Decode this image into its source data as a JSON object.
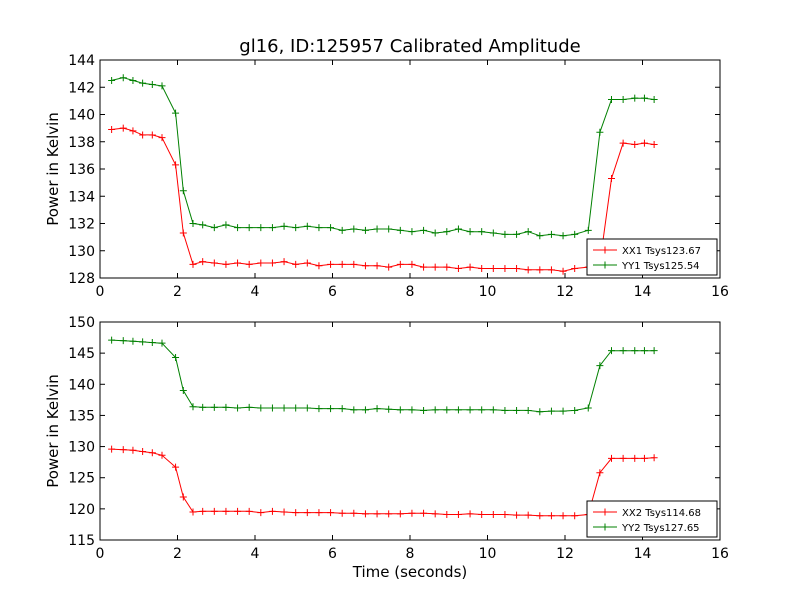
{
  "chart_data": [
    {
      "type": "line",
      "title": "gl16, ID:125957 Calibrated Amplitude",
      "xlabel": "",
      "ylabel": "Power in Kelvin",
      "xlim": [
        0,
        16
      ],
      "ylim": [
        128,
        144
      ],
      "xticks": [
        "0",
        "2",
        "4",
        "6",
        "8",
        "10",
        "12",
        "14",
        "16"
      ],
      "yticks": [
        "128",
        "130",
        "132",
        "134",
        "136",
        "138",
        "140",
        "142",
        "144"
      ],
      "grid": false,
      "legend_position": "lower-right",
      "x": [
        0.3,
        0.6,
        0.85,
        1.1,
        1.35,
        1.6,
        1.95,
        2.15,
        2.4,
        2.65,
        2.95,
        3.25,
        3.55,
        3.85,
        4.15,
        4.45,
        4.75,
        5.05,
        5.35,
        5.65,
        5.95,
        6.25,
        6.55,
        6.85,
        7.15,
        7.45,
        7.75,
        8.05,
        8.35,
        8.65,
        8.95,
        9.25,
        9.55,
        9.85,
        10.15,
        10.45,
        10.75,
        11.05,
        11.35,
        11.65,
        11.95,
        12.25,
        12.6,
        12.9,
        13.2,
        13.5,
        13.8,
        14.05,
        14.3
      ],
      "series": [
        {
          "name": "XX1 Tsys123.67",
          "color": "#ff0000",
          "values": [
            138.9,
            139.0,
            138.8,
            138.5,
            138.5,
            138.3,
            136.3,
            131.3,
            129.0,
            129.2,
            129.1,
            129.0,
            129.1,
            129.0,
            129.1,
            129.1,
            129.2,
            129.0,
            129.1,
            128.9,
            129.0,
            129.0,
            129.0,
            128.9,
            128.9,
            128.8,
            129.0,
            129.0,
            128.8,
            128.8,
            128.8,
            128.7,
            128.8,
            128.7,
            128.7,
            128.7,
            128.7,
            128.6,
            128.6,
            128.6,
            128.5,
            128.7,
            128.8,
            129.1,
            135.3,
            137.9,
            137.8,
            137.9,
            137.8
          ]
        },
        {
          "name": "YY1 Tsys125.54",
          "color": "#008000",
          "values": [
            142.5,
            142.7,
            142.5,
            142.3,
            142.2,
            142.1,
            140.1,
            134.4,
            132.0,
            131.9,
            131.7,
            131.9,
            131.7,
            131.7,
            131.7,
            131.7,
            131.8,
            131.7,
            131.8,
            131.7,
            131.7,
            131.5,
            131.6,
            131.5,
            131.6,
            131.6,
            131.5,
            131.4,
            131.5,
            131.3,
            131.4,
            131.6,
            131.4,
            131.4,
            131.3,
            131.2,
            131.2,
            131.4,
            131.1,
            131.2,
            131.1,
            131.2,
            131.5,
            138.7,
            141.1,
            141.1,
            141.2,
            141.2,
            141.1
          ]
        }
      ]
    },
    {
      "type": "line",
      "title": "",
      "xlabel": "Time (seconds)",
      "ylabel": "Power in Kelvin",
      "xlim": [
        0,
        16
      ],
      "ylim": [
        115,
        150
      ],
      "xticks": [
        "0",
        "2",
        "4",
        "6",
        "8",
        "10",
        "12",
        "14",
        "16"
      ],
      "yticks": [
        "115",
        "120",
        "125",
        "130",
        "135",
        "140",
        "145",
        "150"
      ],
      "grid": false,
      "legend_position": "lower-right",
      "x": [
        0.3,
        0.6,
        0.85,
        1.1,
        1.35,
        1.6,
        1.95,
        2.15,
        2.4,
        2.65,
        2.95,
        3.25,
        3.55,
        3.85,
        4.15,
        4.45,
        4.75,
        5.05,
        5.35,
        5.65,
        5.95,
        6.25,
        6.55,
        6.85,
        7.15,
        7.45,
        7.75,
        8.05,
        8.35,
        8.65,
        8.95,
        9.25,
        9.55,
        9.85,
        10.15,
        10.45,
        10.75,
        11.05,
        11.35,
        11.65,
        11.95,
        12.25,
        12.6,
        12.9,
        13.2,
        13.5,
        13.8,
        14.05,
        14.3
      ],
      "series": [
        {
          "name": "XX2 Tsys114.68",
          "color": "#ff0000",
          "values": [
            129.6,
            129.5,
            129.4,
            129.2,
            129.0,
            128.6,
            126.7,
            121.9,
            119.5,
            119.6,
            119.6,
            119.6,
            119.6,
            119.6,
            119.4,
            119.6,
            119.5,
            119.4,
            119.4,
            119.4,
            119.4,
            119.3,
            119.3,
            119.2,
            119.2,
            119.2,
            119.2,
            119.3,
            119.3,
            119.2,
            119.1,
            119.1,
            119.2,
            119.1,
            119.1,
            119.1,
            119.0,
            119.0,
            118.9,
            118.9,
            118.9,
            118.9,
            119.1,
            125.8,
            128.1,
            128.1,
            128.1,
            128.1,
            128.2
          ]
        },
        {
          "name": "YY2 Tsys127.65",
          "color": "#008000",
          "values": [
            147.1,
            147.0,
            146.9,
            146.8,
            146.7,
            146.6,
            144.3,
            139.0,
            136.4,
            136.3,
            136.3,
            136.3,
            136.2,
            136.3,
            136.2,
            136.2,
            136.2,
            136.2,
            136.2,
            136.1,
            136.1,
            136.1,
            135.9,
            135.9,
            136.1,
            136.0,
            135.9,
            135.9,
            135.8,
            135.9,
            135.9,
            135.9,
            135.9,
            135.9,
            135.9,
            135.8,
            135.8,
            135.8,
            135.6,
            135.7,
            135.7,
            135.8,
            136.2,
            143.0,
            145.4,
            145.4,
            145.4,
            145.4,
            145.4
          ]
        }
      ]
    }
  ]
}
